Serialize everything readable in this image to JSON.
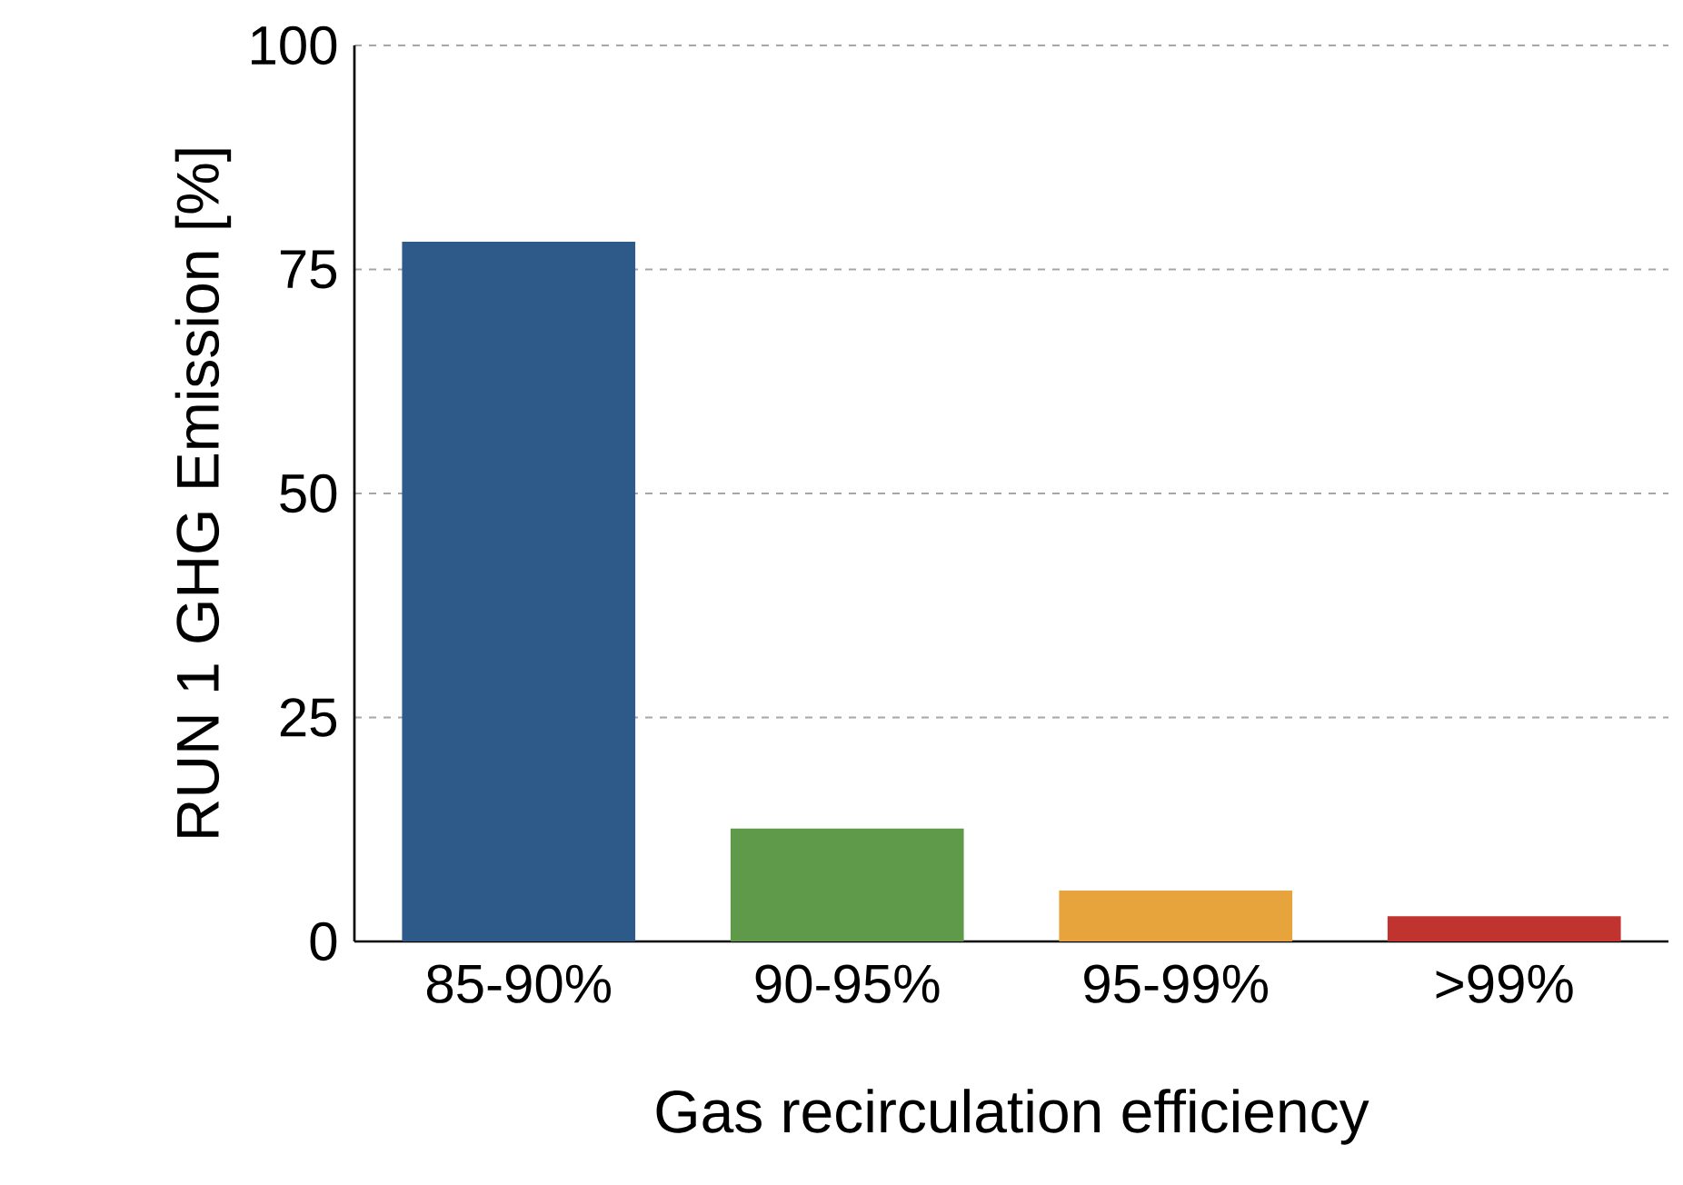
{
  "chart_data": {
    "type": "bar",
    "xlabel": "Gas recirculation efficiency",
    "ylabel": "RUN 1 GHG Emission [%]",
    "categories": [
      "85-90%",
      "90-95%",
      "95-99%",
      ">99%"
    ],
    "values": [
      78.1,
      12.6,
      5.7,
      2.8
    ],
    "colors": [
      "#2e5a8a",
      "#5e9a4a",
      "#e8a43c",
      "#c0332e"
    ],
    "ylim": [
      0,
      100
    ],
    "yticks": [
      0,
      25,
      50,
      75,
      100
    ],
    "grid": "y"
  }
}
